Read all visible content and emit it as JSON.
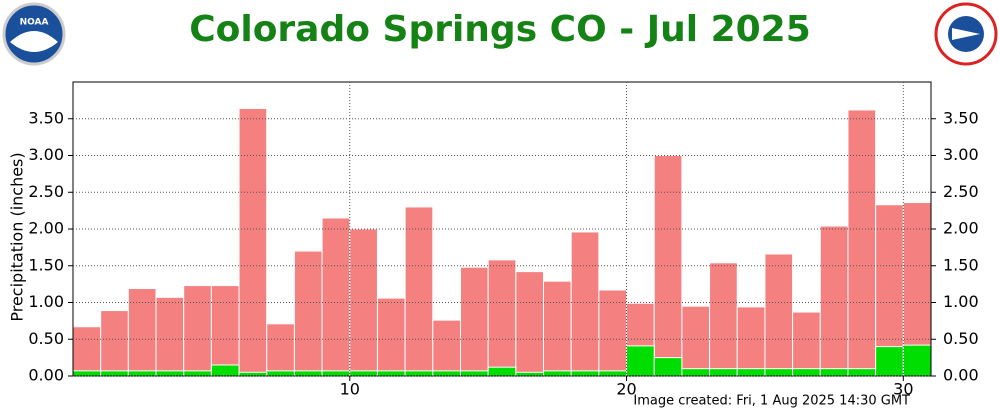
{
  "chart_data": {
    "type": "bar",
    "title": "Colorado Springs CO - Jul 2025",
    "y_label": "Precipitation (inches)",
    "footer": "Image created: Fri, 1 Aug 2025 14:30 GMT",
    "logo_left": "NOAA",
    "x": [
      1,
      2,
      3,
      4,
      5,
      6,
      7,
      8,
      9,
      10,
      11,
      12,
      13,
      14,
      15,
      16,
      17,
      18,
      19,
      20,
      21,
      22,
      23,
      24,
      25,
      26,
      27,
      28,
      29,
      30,
      31
    ],
    "xlim": [
      0,
      31
    ],
    "xticks": [
      10,
      20,
      30
    ],
    "ylim": [
      0,
      4
    ],
    "yticks": [
      {
        "value": 0,
        "label": "0.00"
      },
      {
        "value": 0.5,
        "label": "0.50"
      },
      {
        "value": 1,
        "label": "1.00"
      },
      {
        "value": 1.5,
        "label": "1.50"
      },
      {
        "value": 2,
        "label": "2.00"
      },
      {
        "value": 2.5,
        "label": "2.50"
      },
      {
        "value": 3,
        "label": "3.00"
      },
      {
        "value": 3.5,
        "label": "3.50"
      }
    ],
    "grid": true,
    "series": [
      {
        "color": "#f48080",
        "values": [
          0.67,
          0.89,
          1.19,
          1.07,
          1.23,
          1.23,
          3.64,
          0.71,
          1.7,
          2.15,
          2.0,
          1.06,
          2.3,
          0.76,
          1.48,
          1.58,
          1.42,
          1.29,
          1.96,
          1.17,
          0.99,
          3.0,
          0.95,
          1.54,
          0.94,
          1.66,
          0.87,
          2.04,
          3.62,
          2.33,
          2.36
        ]
      },
      {
        "color": "#00dd00",
        "values": [
          0.07,
          0.07,
          0.07,
          0.07,
          0.07,
          0.15,
          0.05,
          0.07,
          0.07,
          0.07,
          0.07,
          0.07,
          0.07,
          0.07,
          0.07,
          0.12,
          0.05,
          0.07,
          0.07,
          0.07,
          0.41,
          0.25,
          0.1,
          0.1,
          0.1,
          0.1,
          0.1,
          0.1,
          0.1,
          0.4,
          0.42
        ]
      }
    ]
  }
}
